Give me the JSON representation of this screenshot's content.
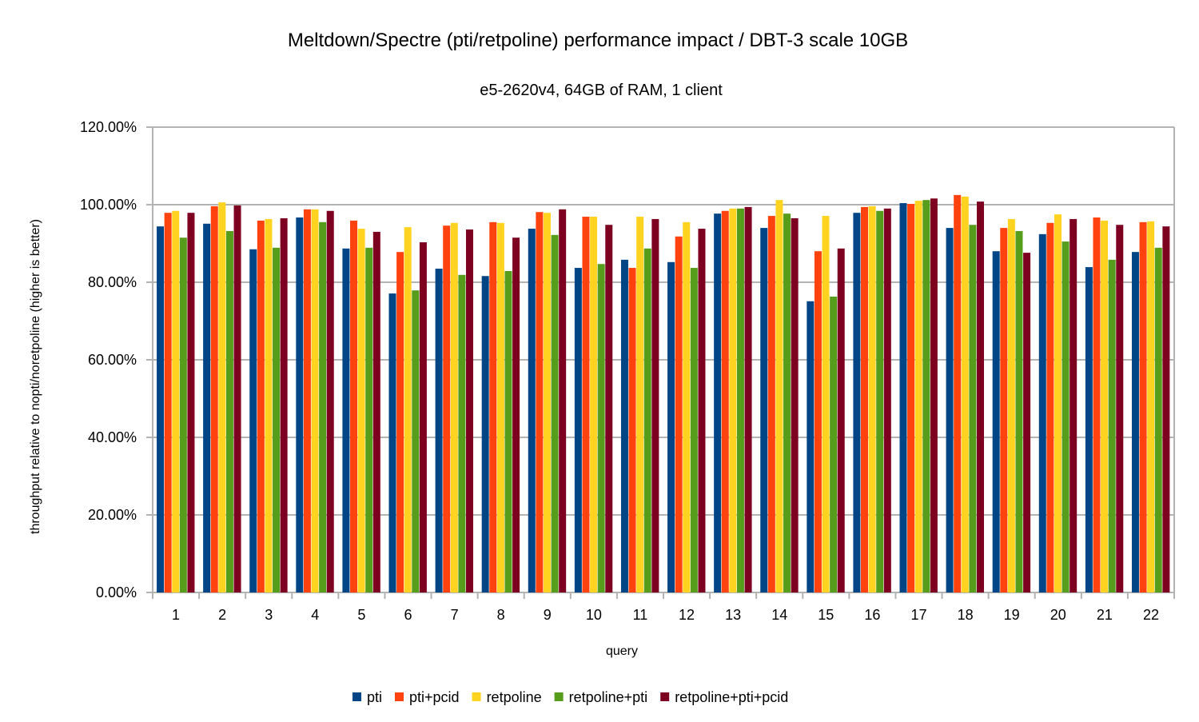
{
  "chart_data": {
    "type": "bar",
    "title": "Meltdown/Spectre (pti/retpoline) performance impact / DBT-3 scale 10GB",
    "subtitle": "e5-2620v4, 64GB of RAM, 1 client",
    "xlabel": "query",
    "ylabel": "throughput relative to nopti/noretpoline (higher is better)",
    "ylim": [
      0,
      120
    ],
    "yticks": [
      "0.00%",
      "20.00%",
      "40.00%",
      "60.00%",
      "80.00%",
      "100.00%",
      "120.00%"
    ],
    "grid": true,
    "legend_position": "bottom",
    "categories": [
      "1",
      "2",
      "3",
      "4",
      "5",
      "6",
      "7",
      "8",
      "9",
      "10",
      "11",
      "12",
      "13",
      "14",
      "15",
      "16",
      "17",
      "18",
      "19",
      "20",
      "21",
      "22"
    ],
    "series": [
      {
        "name": "pti",
        "color": "#004586",
        "values": [
          94.4,
          95.1,
          88.5,
          96.7,
          88.7,
          77.1,
          83.5,
          81.6,
          93.8,
          83.7,
          85.8,
          85.2,
          97.7,
          94.0,
          75.1,
          97.9,
          100.4,
          94.0,
          88.0,
          92.4,
          83.9,
          87.8
        ]
      },
      {
        "name": "pti+pcid",
        "color": "#ff420e",
        "values": [
          97.9,
          99.6,
          95.9,
          98.8,
          95.9,
          87.8,
          94.6,
          95.5,
          98.1,
          96.9,
          83.7,
          91.8,
          98.4,
          97.1,
          88.0,
          99.4,
          100.2,
          102.5,
          94.0,
          95.3,
          96.7,
          95.5
        ]
      },
      {
        "name": "retpoline",
        "color": "#ffd320",
        "values": [
          98.4,
          100.6,
          96.3,
          98.8,
          93.8,
          94.2,
          95.3,
          95.3,
          97.9,
          96.9,
          96.9,
          95.5,
          99.0,
          101.2,
          97.1,
          99.6,
          101.0,
          102.1,
          96.3,
          97.5,
          95.9,
          95.7
        ]
      },
      {
        "name": "retpoline+pti",
        "color": "#579d1c",
        "values": [
          91.5,
          93.2,
          88.9,
          95.5,
          88.9,
          77.9,
          81.9,
          82.9,
          92.2,
          84.7,
          88.7,
          83.7,
          99.0,
          97.7,
          76.3,
          98.4,
          101.2,
          94.8,
          93.2,
          90.5,
          85.8,
          88.9
        ]
      },
      {
        "name": "retpoline+pti+pcid",
        "color": "#7e0021",
        "values": [
          97.9,
          99.8,
          96.5,
          98.4,
          93.0,
          90.3,
          93.6,
          91.5,
          98.8,
          94.8,
          96.3,
          93.8,
          99.4,
          96.5,
          88.7,
          99.0,
          101.6,
          100.8,
          87.6,
          96.3,
          94.8,
          94.4
        ]
      }
    ]
  }
}
